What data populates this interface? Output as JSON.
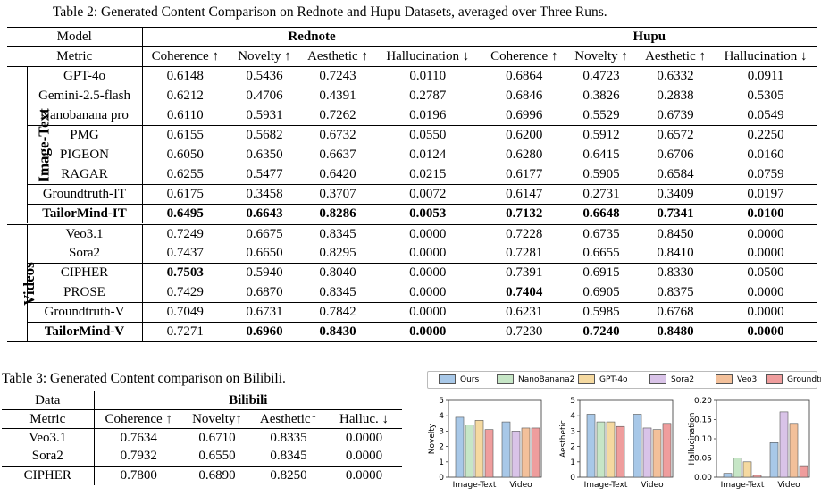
{
  "table2": {
    "caption": "Table 2: Generated Content Comparison on Rednote and Hupu Datasets, averaged over Three Runs.",
    "model_header": "Model",
    "metric_header": "Metric",
    "dataset1": "Rednote",
    "dataset2": "Hupu",
    "metrics": [
      "Coherence ↑",
      "Novelty ↑",
      "Aesthetic ↑",
      "Hallucination ↓"
    ],
    "group_image_text": "Image-Text",
    "group_videos": "Videos",
    "rows_it": [
      {
        "model": "GPT-4o",
        "v": [
          "0.6148",
          "0.5436",
          "0.7243",
          "0.0110",
          "0.6864",
          "0.4723",
          "0.6332",
          "0.0911"
        ]
      },
      {
        "model": "Gemini-2.5-flash",
        "v": [
          "0.6212",
          "0.4706",
          "0.4391",
          "0.2787",
          "0.6846",
          "0.3826",
          "0.2838",
          "0.5305"
        ]
      },
      {
        "model": "Nanobanana pro",
        "v": [
          "0.6110",
          "0.5931",
          "0.7262",
          "0.0196",
          "0.6996",
          "0.5529",
          "0.6739",
          "0.0549"
        ]
      },
      {
        "model": "PMG",
        "v": [
          "0.6155",
          "0.5682",
          "0.6732",
          "0.0550",
          "0.6200",
          "0.5912",
          "0.6572",
          "0.2250"
        ]
      },
      {
        "model": "PIGEON",
        "v": [
          "0.6050",
          "0.6350",
          "0.6637",
          "0.0124",
          "0.6280",
          "0.6415",
          "0.6706",
          "0.0160"
        ]
      },
      {
        "model": "RAGAR",
        "v": [
          "0.6255",
          "0.5477",
          "0.6420",
          "0.0215",
          "0.6177",
          "0.5905",
          "0.6584",
          "0.0759"
        ]
      },
      {
        "model": "Groundtruth-IT",
        "v": [
          "0.6175",
          "0.3458",
          "0.3707",
          "0.0072",
          "0.6147",
          "0.2731",
          "0.3409",
          "0.0197"
        ]
      },
      {
        "model": "TailorMind-IT",
        "v": [
          "0.6495",
          "0.6643",
          "0.8286",
          "0.0053",
          "0.7132",
          "0.6648",
          "0.7341",
          "0.0100"
        ]
      }
    ],
    "rows_v": [
      {
        "model": "Veo3.1",
        "v": [
          "0.7249",
          "0.6675",
          "0.8345",
          "0.0000",
          "0.7228",
          "0.6735",
          "0.8450",
          "0.0000"
        ]
      },
      {
        "model": "Sora2",
        "v": [
          "0.7437",
          "0.6650",
          "0.8295",
          "0.0000",
          "0.7281",
          "0.6655",
          "0.8410",
          "0.0000"
        ]
      },
      {
        "model": "CIPHER",
        "v": [
          "0.7503",
          "0.5940",
          "0.8040",
          "0.0000",
          "0.7391",
          "0.6915",
          "0.8330",
          "0.0500"
        ]
      },
      {
        "model": "PROSE",
        "v": [
          "0.7429",
          "0.6870",
          "0.8345",
          "0.0000",
          "0.7404",
          "0.6905",
          "0.8375",
          "0.0000"
        ]
      },
      {
        "model": "Groundtruth-V",
        "v": [
          "0.7049",
          "0.6731",
          "0.7842",
          "0.0000",
          "0.6231",
          "0.5985",
          "0.6768",
          "0.0000"
        ]
      },
      {
        "model": "TailorMind-V",
        "v": [
          "0.7271",
          "0.6960",
          "0.8430",
          "0.0000",
          "0.7230",
          "0.7240",
          "0.8480",
          "0.0000"
        ]
      }
    ]
  },
  "table3": {
    "caption": "Table 3: Generated Content comparison on Bilibili.",
    "data_header": "Data",
    "dataset": "Bilibili",
    "metric_header": "Metric",
    "metrics": [
      "Coherence ↑",
      "Novelty↑",
      "Aesthetic↑",
      "Halluc. ↓"
    ],
    "rows": [
      {
        "model": "Veo3.1",
        "v": [
          "0.7634",
          "0.6710",
          "0.8335",
          "0.0000"
        ]
      },
      {
        "model": "Sora2",
        "v": [
          "0.7932",
          "0.6550",
          "0.8345",
          "0.0000"
        ]
      },
      {
        "model": "CIPHER",
        "v": [
          "0.7800",
          "0.6890",
          "0.8250",
          "0.0000"
        ]
      }
    ]
  },
  "chart_data": {
    "type": "bar",
    "legend": [
      "Ours",
      "NanoBanana2",
      "GPT-4o",
      "Sora2",
      "Veo3",
      "Groundtruth"
    ],
    "colors": [
      "#a8c8e8",
      "#c6e6c6",
      "#f5d9a0",
      "#d9c3e8",
      "#f3c09a",
      "#ef9d9d"
    ],
    "categories": [
      "Image-Text",
      "Video"
    ],
    "legend_placement": "top",
    "panels": [
      {
        "ylabel": "Novelty",
        "ylim": [
          0,
          5
        ],
        "ticks": [
          "0",
          "1",
          "2",
          "3",
          "4",
          "5"
        ],
        "groups": [
          [
            3.9,
            3.4,
            3.7,
            3.1
          ],
          [
            3.6,
            3.0,
            3.2,
            3.2
          ]
        ]
      },
      {
        "ylabel": "Aesthetic",
        "ylim": [
          0,
          5
        ],
        "ticks": [
          "0",
          "1",
          "2",
          "3",
          "4",
          "5"
        ],
        "groups": [
          [
            4.1,
            3.6,
            3.6,
            3.3
          ],
          [
            4.1,
            3.2,
            3.1,
            3.5
          ]
        ]
      },
      {
        "ylabel": "Hallucination",
        "ylim": [
          0,
          0.2
        ],
        "ticks": [
          "0.00",
          "0.05",
          "0.10",
          "0.15",
          "0.20"
        ],
        "groups": [
          [
            0.01,
            0.05,
            0.04,
            0.005
          ],
          [
            0.09,
            0.17,
            0.14,
            0.03
          ]
        ]
      }
    ],
    "group_series": [
      [
        "Ours",
        "NanoBanana2",
        "GPT-4o",
        "Groundtruth"
      ],
      [
        "Ours",
        "Sora2",
        "Veo3",
        "Groundtruth"
      ]
    ]
  }
}
